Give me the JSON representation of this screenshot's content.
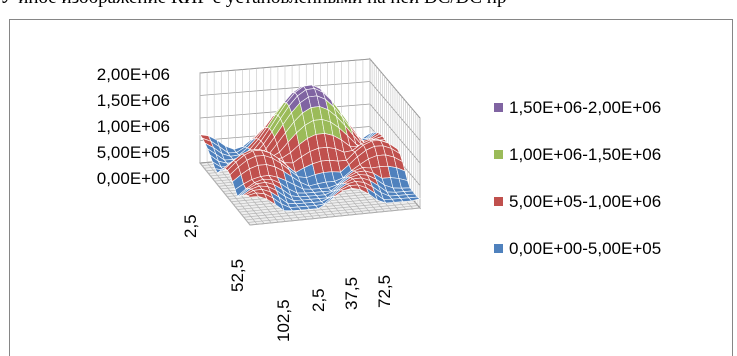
{
  "caption": "У иное изображение КИР с установленными на ней DC/DC пр",
  "chart_data": {
    "type": "surface3d",
    "y_ticks": [
      "2,00E+06",
      "1,50E+06",
      "1,00E+06",
      "5,00E+05",
      "0,00E+00"
    ],
    "x_ticks": [
      "2,5",
      "52,5",
      "102,5"
    ],
    "z_ticks": [
      "2,5",
      "37,5",
      "72,5"
    ],
    "zlim": [
      0,
      2000000
    ],
    "legend_position": "right",
    "legend": [
      {
        "label": "1,50E+06-2,00E+06",
        "color": "#8064a2"
      },
      {
        "label": "1,00E+06-1,50E+06",
        "color": "#9bbb59"
      },
      {
        "label": "5,00E+05-1,00E+06",
        "color": "#c0504d"
      },
      {
        "label": "0,00E+00-5,00E+05",
        "color": "#4f81bd"
      }
    ]
  }
}
